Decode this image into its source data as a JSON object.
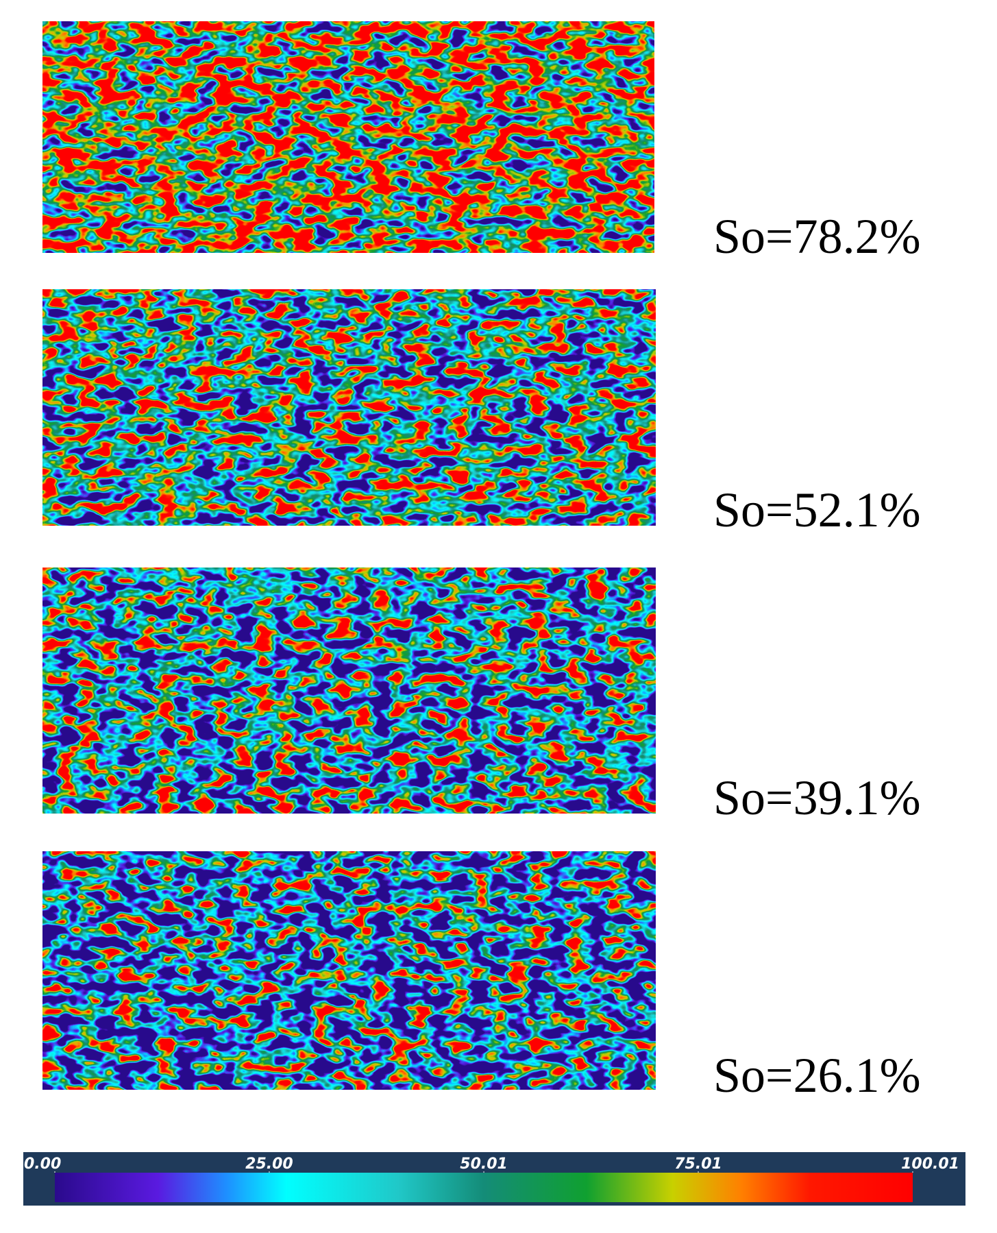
{
  "panels": [
    {
      "label": "So=78.2%"
    },
    {
      "label": "So=52.1%"
    },
    {
      "label": "So=39.1%"
    },
    {
      "label": "So=26.1%"
    }
  ],
  "colorbar": {
    "ticks": [
      {
        "value": 0,
        "label": "0.00"
      },
      {
        "value": 25,
        "label": "25.00"
      },
      {
        "value": 50.01,
        "label": "50.01"
      },
      {
        "value": 75.01,
        "label": "75.01"
      },
      {
        "value": 100.01,
        "label": "100.01"
      }
    ]
  }
}
